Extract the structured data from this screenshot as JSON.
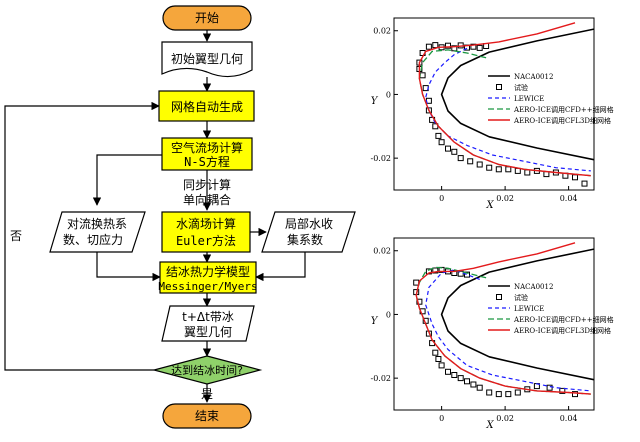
{
  "flowchart": {
    "start": "开始",
    "initial_geometry": "初始翼型几何",
    "mesh_gen": "网格自动生成",
    "airflow_line1": "空气流场计算",
    "airflow_line2": "N-S方程",
    "sync_line1": "同步计算",
    "sync_line2": "单向耦合",
    "convection_line1": "对流换热系",
    "convection_line2": "数、切应力",
    "droplet_line1": "水滴场计算",
    "droplet_line2": "Euler方法",
    "collection_line1": "局部水收",
    "collection_line2": "集系数",
    "thermo_line1": "结冰热力学模型",
    "thermo_line2": "Messinger/Myers",
    "iced_line1": "t+Δt带冰",
    "iced_line2": "翼型几何",
    "decision": "达到结冰时间?",
    "no": "否",
    "yes": "是",
    "end": "结束"
  },
  "colors": {
    "start_end": "#f5a63c",
    "process": "#ffff00",
    "decision": "#8fd16a",
    "naca": "#000000",
    "lewice": "#1a1aff",
    "cfd": "#1a9641",
    "cfl3d": "#e31a1c"
  },
  "chart_data": [
    {
      "type": "line",
      "xlabel": "X",
      "ylabel": "Y",
      "xlim": [
        -0.015,
        0.048
      ],
      "ylim": [
        -0.03,
        0.024
      ],
      "x_ticks": [
        "0",
        "0.02",
        "0.04"
      ],
      "y_ticks": [
        "0.02",
        "0",
        "-0.02"
      ],
      "legend_position": "right",
      "series": [
        {
          "name": "NACA0012",
          "x": [
            0.048,
            0.03,
            0.015,
            0.006,
            0.002,
            0.0,
            0.002,
            0.006,
            0.015,
            0.03,
            0.048
          ],
          "y": [
            0.0205,
            0.0168,
            0.0133,
            0.0091,
            0.0052,
            0.0,
            -0.0052,
            -0.0091,
            -0.0133,
            -0.0168,
            -0.0205
          ]
        },
        {
          "name": "试验",
          "x": [
            -0.004,
            -0.002,
            0.0,
            0.002,
            0.004,
            0.006,
            0.008,
            0.01,
            0.012,
            0.014,
            -0.006,
            -0.007,
            -0.007,
            -0.006,
            -0.005,
            -0.004,
            -0.004,
            -0.003,
            -0.002,
            -0.001,
            0.0,
            0.002,
            0.004,
            0.006,
            0.009,
            0.012,
            0.015,
            0.018,
            0.021,
            0.024,
            0.027,
            0.03,
            0.033,
            0.036,
            0.039,
            0.042,
            0.045
          ],
          "y": [
            0.015,
            0.0155,
            0.0148,
            0.0153,
            0.0145,
            0.0154,
            0.0147,
            0.015,
            0.0146,
            0.0152,
            0.013,
            0.01,
            0.008,
            0.006,
            0.002,
            -0.002,
            -0.005,
            -0.008,
            -0.01,
            -0.013,
            -0.015,
            -0.017,
            -0.018,
            -0.02,
            -0.021,
            -0.022,
            -0.023,
            -0.0235,
            -0.0235,
            -0.024,
            -0.0245,
            -0.024,
            -0.025,
            -0.0245,
            -0.0255,
            -0.026,
            -0.028
          ]
        },
        {
          "name": "LEWICE",
          "x": [
            0.008,
            0.004,
            0.001,
            -0.002,
            -0.004,
            -0.005,
            -0.004,
            -0.002,
            0.002,
            0.008,
            0.016,
            0.026,
            0.036,
            0.047
          ],
          "y": [
            0.0145,
            0.0125,
            0.01,
            0.007,
            0.003,
            -0.001,
            -0.005,
            -0.009,
            -0.013,
            -0.016,
            -0.019,
            -0.021,
            -0.023,
            -0.024
          ]
        },
        {
          "name": "AERO-ICE调用CFD++细网格",
          "x": [
            0.014,
            0.008,
            0.002,
            -0.003,
            -0.006,
            -0.007,
            -0.006,
            -0.004,
            -0.001,
            0.004,
            0.01,
            0.018,
            0.026,
            0.036,
            0.047
          ],
          "y": [
            0.0115,
            0.013,
            0.014,
            0.0135,
            0.01,
            0.005,
            0.0,
            -0.005,
            -0.01,
            -0.015,
            -0.019,
            -0.022,
            -0.0235,
            -0.0245,
            -0.0255
          ]
        },
        {
          "name": "AERO-ICE调用CFL3D细网格",
          "x": [
            0.042,
            0.03,
            0.018,
            0.01,
            0.004,
            -0.001,
            -0.005,
            -0.007,
            -0.007,
            -0.006,
            -0.004,
            -0.001,
            0.004,
            0.01,
            0.018,
            0.026,
            0.036,
            0.047
          ],
          "y": [
            0.0225,
            0.019,
            0.0165,
            0.0155,
            0.015,
            0.0148,
            0.0135,
            0.01,
            0.005,
            0.0,
            -0.005,
            -0.01,
            -0.015,
            -0.019,
            -0.022,
            -0.0235,
            -0.0245,
            -0.0255
          ]
        }
      ]
    },
    {
      "type": "line",
      "xlabel": "X",
      "ylabel": "Y",
      "xlim": [
        -0.015,
        0.048
      ],
      "ylim": [
        -0.03,
        0.024
      ],
      "x_ticks": [
        "0",
        "0.02",
        "0.04"
      ],
      "y_ticks": [
        "0.02",
        "0",
        "-0.02"
      ],
      "legend_position": "right",
      "series": [
        {
          "name": "NACA0012",
          "x": [
            0.048,
            0.03,
            0.015,
            0.006,
            0.002,
            0.0,
            0.002,
            0.006,
            0.015,
            0.03,
            0.048
          ],
          "y": [
            0.0205,
            0.0168,
            0.0133,
            0.0091,
            0.0052,
            0.0,
            -0.0052,
            -0.0091,
            -0.0133,
            -0.0168,
            -0.0205
          ]
        },
        {
          "name": "试验",
          "x": [
            -0.004,
            -0.002,
            0.0,
            0.002,
            0.004,
            0.006,
            0.008,
            -0.008,
            -0.008,
            -0.007,
            -0.006,
            -0.005,
            -0.004,
            -0.003,
            -0.002,
            -0.001,
            0.0,
            0.002,
            0.004,
            0.006,
            0.008,
            0.01,
            0.012,
            0.015,
            0.018,
            0.021,
            0.024,
            0.027,
            0.03,
            0.034,
            0.038,
            0.042
          ],
          "y": [
            0.0135,
            0.0138,
            0.014,
            0.0135,
            0.013,
            0.0128,
            0.0125,
            0.01,
            0.007,
            0.004,
            0.001,
            -0.002,
            -0.006,
            -0.009,
            -0.012,
            -0.014,
            -0.016,
            -0.018,
            -0.019,
            -0.02,
            -0.021,
            -0.022,
            -0.023,
            -0.0245,
            -0.025,
            -0.025,
            -0.0245,
            -0.0235,
            -0.0225,
            -0.023,
            -0.024,
            -0.025
          ]
        },
        {
          "name": "LEWICE",
          "x": [
            0.012,
            0.008,
            0.004,
            0.0,
            -0.004,
            -0.005,
            -0.003,
            -0.001,
            0.002,
            0.008,
            0.016,
            0.026,
            0.036,
            0.047
          ],
          "y": [
            0.011,
            0.0125,
            0.014,
            0.013,
            0.0085,
            0.003,
            -0.003,
            -0.007,
            -0.011,
            -0.016,
            -0.019,
            -0.021,
            -0.023,
            -0.024
          ]
        },
        {
          "name": "AERO-ICE调用CFD++细网格",
          "x": [
            0.014,
            0.008,
            0.002,
            -0.002,
            -0.005,
            -0.007,
            -0.008,
            -0.007,
            -0.005,
            -0.003,
            0.001,
            0.006,
            0.012,
            0.02,
            0.03,
            0.04,
            0.047
          ],
          "y": [
            0.0115,
            0.013,
            0.0145,
            0.0148,
            0.0135,
            0.01,
            0.006,
            0.002,
            -0.003,
            -0.008,
            -0.013,
            -0.017,
            -0.02,
            -0.0225,
            -0.024,
            -0.0245,
            -0.025
          ]
        },
        {
          "name": "AERO-ICE调用CFL3D细网格",
          "x": [
            0.042,
            0.03,
            0.018,
            0.01,
            0.004,
            -0.001,
            -0.004,
            -0.007,
            -0.008,
            -0.007,
            -0.005,
            -0.003,
            0.001,
            0.006,
            0.012,
            0.02,
            0.03,
            0.04,
            0.047
          ],
          "y": [
            0.0225,
            0.019,
            0.0165,
            0.0145,
            0.0135,
            0.0135,
            0.013,
            0.0105,
            0.006,
            0.002,
            -0.003,
            -0.008,
            -0.013,
            -0.017,
            -0.02,
            -0.0225,
            -0.024,
            -0.0245,
            -0.025
          ]
        }
      ]
    }
  ]
}
